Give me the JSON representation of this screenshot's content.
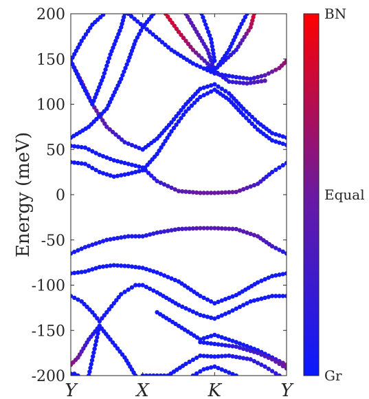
{
  "chart_data": {
    "type": "scatter",
    "subtype": "band-structure",
    "ylabel": "Energy (meV)",
    "xlabel": "",
    "ylim": [
      -200,
      200
    ],
    "xlim": [
      0,
      3
    ],
    "x_ticks": [
      {
        "value": 0,
        "label": "Y"
      },
      {
        "value": 1,
        "label": "X"
      },
      {
        "value": 2,
        "label": "K"
      },
      {
        "value": 3,
        "label": "Y"
      }
    ],
    "y_ticks": [
      {
        "value": 200,
        "label": "200"
      },
      {
        "value": 150,
        "label": "150"
      },
      {
        "value": 100,
        "label": "100"
      },
      {
        "value": 50,
        "label": "50"
      },
      {
        "value": 0,
        "label": "0"
      },
      {
        "value": -50,
        "label": "-50"
      },
      {
        "value": -100,
        "label": "-100"
      },
      {
        "value": -150,
        "label": "-150"
      },
      {
        "value": -200,
        "label": "-200"
      }
    ],
    "grid": false,
    "colorbar": {
      "labels": [
        {
          "value": 1,
          "label": "BN"
        },
        {
          "value": 0.5,
          "label": "Equal"
        },
        {
          "value": 0,
          "label": "Gr"
        }
      ],
      "color_low": "#0a1aff",
      "color_mid": "#6a1aa0",
      "color_high": "#ff0000"
    },
    "series": [
      {
        "points": [
          [
            0,
            148,
            0.05
          ],
          [
            0.15,
            170,
            0.05
          ],
          [
            0.3,
            188,
            0.05
          ],
          [
            0.45,
            199,
            0.05
          ]
        ]
      },
      {
        "points": [
          [
            0,
            148,
            0.6
          ],
          [
            0.15,
            125,
            0.6
          ],
          [
            0.3,
            100,
            0.5
          ],
          [
            0.5,
            75,
            0.4
          ],
          [
            0.75,
            58,
            0.2
          ],
          [
            1,
            50,
            0.05
          ]
        ]
      },
      {
        "points": [
          [
            0,
            148,
            0.05
          ],
          [
            0.15,
            123,
            0.05
          ],
          [
            0.3,
            100,
            0.05
          ],
          [
            0.45,
            130,
            0.05
          ],
          [
            0.55,
            155,
            0.05
          ],
          [
            0.7,
            185,
            0.05
          ],
          [
            0.75,
            200,
            0.05
          ]
        ]
      },
      {
        "points": [
          [
            0,
            63,
            0.05
          ],
          [
            0.25,
            75,
            0.05
          ],
          [
            0.5,
            95,
            0.05
          ],
          [
            0.7,
            128,
            0.05
          ],
          [
            0.8,
            148,
            0.05
          ],
          [
            0.9,
            170,
            0.05
          ],
          [
            1.0,
            185,
            0.05
          ],
          [
            1.15,
            200,
            0.05
          ]
        ]
      },
      {
        "points": [
          [
            0,
            54,
            0.05
          ],
          [
            0.2,
            52,
            0.05
          ],
          [
            0.4,
            44,
            0.05
          ],
          [
            0.6,
            38,
            0.05
          ],
          [
            0.85,
            33,
            0.05
          ],
          [
            1,
            30,
            0.05
          ],
          [
            1.2,
            15,
            0.2
          ],
          [
            1.5,
            4,
            0.4
          ],
          [
            1.8,
            2,
            0.5
          ],
          [
            2,
            2,
            0.5
          ],
          [
            2.3,
            3,
            0.5
          ],
          [
            2.6,
            12,
            0.3
          ],
          [
            2.8,
            25,
            0.1
          ],
          [
            3,
            35,
            0.05
          ]
        ]
      },
      {
        "points": [
          [
            0,
            36,
            0.05
          ],
          [
            0.2,
            34,
            0.05
          ],
          [
            0.4,
            25,
            0.05
          ],
          [
            0.6,
            20,
            0.05
          ],
          [
            0.8,
            23,
            0.05
          ],
          [
            1,
            27,
            0.05
          ],
          [
            1.2,
            45,
            0.05
          ],
          [
            1.4,
            70,
            0.05
          ],
          [
            1.6,
            92,
            0.05
          ],
          [
            1.8,
            108,
            0.05
          ],
          [
            2,
            116,
            0.05
          ],
          [
            2.2,
            105,
            0.05
          ],
          [
            2.4,
            88,
            0.05
          ],
          [
            2.6,
            72,
            0.05
          ],
          [
            2.8,
            60,
            0.05
          ],
          [
            3,
            55,
            0.05
          ]
        ]
      },
      {
        "points": [
          [
            1,
            50,
            0.05
          ],
          [
            1.2,
            62,
            0.05
          ],
          [
            1.4,
            80,
            0.05
          ],
          [
            1.6,
            100,
            0.05
          ],
          [
            1.8,
            117,
            0.05
          ],
          [
            2,
            122,
            0.05
          ],
          [
            2.2,
            112,
            0.05
          ],
          [
            2.4,
            95,
            0.05
          ],
          [
            2.6,
            80,
            0.05
          ],
          [
            2.8,
            68,
            0.05
          ],
          [
            3,
            63,
            0.05
          ]
        ]
      },
      {
        "points": [
          [
            0.8,
            200,
            0.05
          ],
          [
            1.1,
            180,
            0.05
          ],
          [
            1.4,
            160,
            0.05
          ],
          [
            1.7,
            145,
            0.05
          ],
          [
            2,
            134,
            0.05
          ],
          [
            2.3,
            130,
            0.1
          ],
          [
            2.5,
            128,
            0.2
          ],
          [
            2.7,
            132,
            0.4
          ],
          [
            2.9,
            140,
            0.6
          ],
          [
            3,
            148,
            0.65
          ]
        ]
      },
      {
        "points": [
          [
            1.6,
            200,
            0.4
          ],
          [
            1.75,
            180,
            0.4
          ],
          [
            1.9,
            160,
            0.3
          ],
          [
            2,
            137,
            0.1
          ],
          [
            2.2,
            125,
            0.2
          ],
          [
            2.45,
            123,
            0.3
          ],
          [
            2.7,
            126,
            0.4
          ]
        ]
      },
      {
        "points": [
          [
            1.32,
            200,
            0.85
          ],
          [
            1.5,
            180,
            0.8
          ],
          [
            1.7,
            160,
            0.6
          ],
          [
            1.9,
            145,
            0.3
          ],
          [
            2,
            138,
            0.1
          ],
          [
            2.3,
            160,
            0.2
          ],
          [
            2.5,
            185,
            0.7
          ],
          [
            2.55,
            200,
            0.85
          ]
        ]
      },
      {
        "points": [
          [
            1.9,
            140,
            0.05
          ],
          [
            2,
            137,
            0.05
          ],
          [
            2.2,
            160,
            0.05
          ],
          [
            2.35,
            185,
            0.05
          ],
          [
            2.45,
            200,
            0.05
          ]
        ]
      },
      {
        "points": [
          [
            1.82,
            200,
            0.05
          ],
          [
            1.95,
            172,
            0.05
          ],
          [
            2,
            148,
            0.05
          ]
        ]
      },
      {
        "points": [
          [
            0,
            -65,
            0.05
          ],
          [
            0.2,
            -58,
            0.1
          ],
          [
            0.5,
            -50,
            0.1
          ],
          [
            0.8,
            -46,
            0.1
          ],
          [
            1,
            -46,
            0.1
          ],
          [
            1.2,
            -42,
            0.2
          ],
          [
            1.5,
            -38,
            0.3
          ],
          [
            1.8,
            -37,
            0.4
          ],
          [
            2,
            -37,
            0.4
          ],
          [
            2.3,
            -38,
            0.4
          ],
          [
            2.6,
            -46,
            0.4
          ],
          [
            2.8,
            -57,
            0.3
          ],
          [
            3,
            -65,
            0.1
          ]
        ]
      },
      {
        "points": [
          [
            0,
            -87,
            0.05
          ],
          [
            0.2,
            -85,
            0.05
          ],
          [
            0.4,
            -80,
            0.05
          ],
          [
            0.6,
            -78,
            0.05
          ],
          [
            0.8,
            -79,
            0.05
          ],
          [
            1,
            -81,
            0.05
          ],
          [
            1.2,
            -86,
            0.05
          ],
          [
            1.5,
            -96,
            0.05
          ],
          [
            1.8,
            -112,
            0.05
          ],
          [
            2,
            -120,
            0.05
          ],
          [
            2.3,
            -111,
            0.05
          ],
          [
            2.6,
            -97,
            0.05
          ],
          [
            2.8,
            -90,
            0.05
          ],
          [
            3,
            -87,
            0.05
          ]
        ]
      },
      {
        "points": [
          [
            0,
            -112,
            0.05
          ],
          [
            0.15,
            -118,
            0.05
          ],
          [
            0.3,
            -130,
            0.05
          ],
          [
            0.4,
            -140,
            0.1
          ],
          [
            0.5,
            -130,
            0.05
          ],
          [
            0.7,
            -110,
            0.05
          ],
          [
            0.9,
            -100,
            0.05
          ],
          [
            1,
            -100,
            0.05
          ],
          [
            1.2,
            -108,
            0.05
          ],
          [
            1.5,
            -122,
            0.05
          ],
          [
            1.8,
            -133,
            0.05
          ],
          [
            2,
            -137,
            0.05
          ],
          [
            2.2,
            -130,
            0.05
          ],
          [
            2.5,
            -118,
            0.05
          ],
          [
            2.8,
            -112,
            0.05
          ],
          [
            3,
            -112,
            0.05
          ]
        ]
      },
      {
        "points": [
          [
            0,
            -188,
            0.65
          ],
          [
            0.1,
            -180,
            0.5
          ],
          [
            0.25,
            -160,
            0.2
          ],
          [
            0.4,
            -145,
            0.05
          ],
          [
            0.55,
            -160,
            0.05
          ],
          [
            0.75,
            -180,
            0.05
          ],
          [
            0.9,
            -200,
            0.05
          ]
        ]
      },
      {
        "points": [
          [
            0.25,
            -200,
            0.05
          ],
          [
            0.4,
            -145,
            0.05
          ]
        ]
      },
      {
        "points": [
          [
            1.2,
            -130,
            0.05
          ],
          [
            1.5,
            -145,
            0.05
          ],
          [
            1.8,
            -160,
            0.05
          ],
          [
            2,
            -155,
            0.05
          ],
          [
            2.3,
            -163,
            0.05
          ],
          [
            2.6,
            -172,
            0.05
          ],
          [
            2.8,
            -180,
            0.05
          ],
          [
            3,
            -188,
            0.65
          ]
        ]
      },
      {
        "points": [
          [
            1.8,
            -163,
            0.05
          ],
          [
            2,
            -165,
            0.05
          ],
          [
            2.3,
            -168,
            0.2
          ],
          [
            2.6,
            -175,
            0.3
          ],
          [
            2.8,
            -182,
            0.4
          ],
          [
            3,
            -192,
            0.5
          ]
        ]
      },
      {
        "points": [
          [
            1.35,
            -200,
            0.05
          ],
          [
            1.6,
            -187,
            0.05
          ],
          [
            1.8,
            -178,
            0.05
          ],
          [
            2,
            -179,
            0.05
          ],
          [
            2.2,
            -178,
            0.1
          ],
          [
            2.5,
            -182,
            0.2
          ],
          [
            2.7,
            -190,
            0.2
          ],
          [
            2.9,
            -200,
            0.2
          ]
        ]
      },
      {
        "points": [
          [
            1.7,
            -200,
            0.05
          ],
          [
            1.85,
            -193,
            0.05
          ],
          [
            2,
            -190,
            0.05
          ],
          [
            2.15,
            -195,
            0.05
          ],
          [
            2.3,
            -200,
            0.05
          ]
        ]
      },
      {
        "points": [
          [
            0,
            -198,
            0.05
          ],
          [
            0.08,
            -200,
            0.05
          ]
        ]
      },
      {
        "points": [
          [
            0.1,
            -200,
            0.05
          ],
          [
            0.05,
            -198,
            0.05
          ]
        ]
      },
      {
        "points": [
          [
            1,
            -200,
            0.05
          ],
          [
            1.3,
            -200,
            0.05
          ]
        ]
      }
    ]
  }
}
